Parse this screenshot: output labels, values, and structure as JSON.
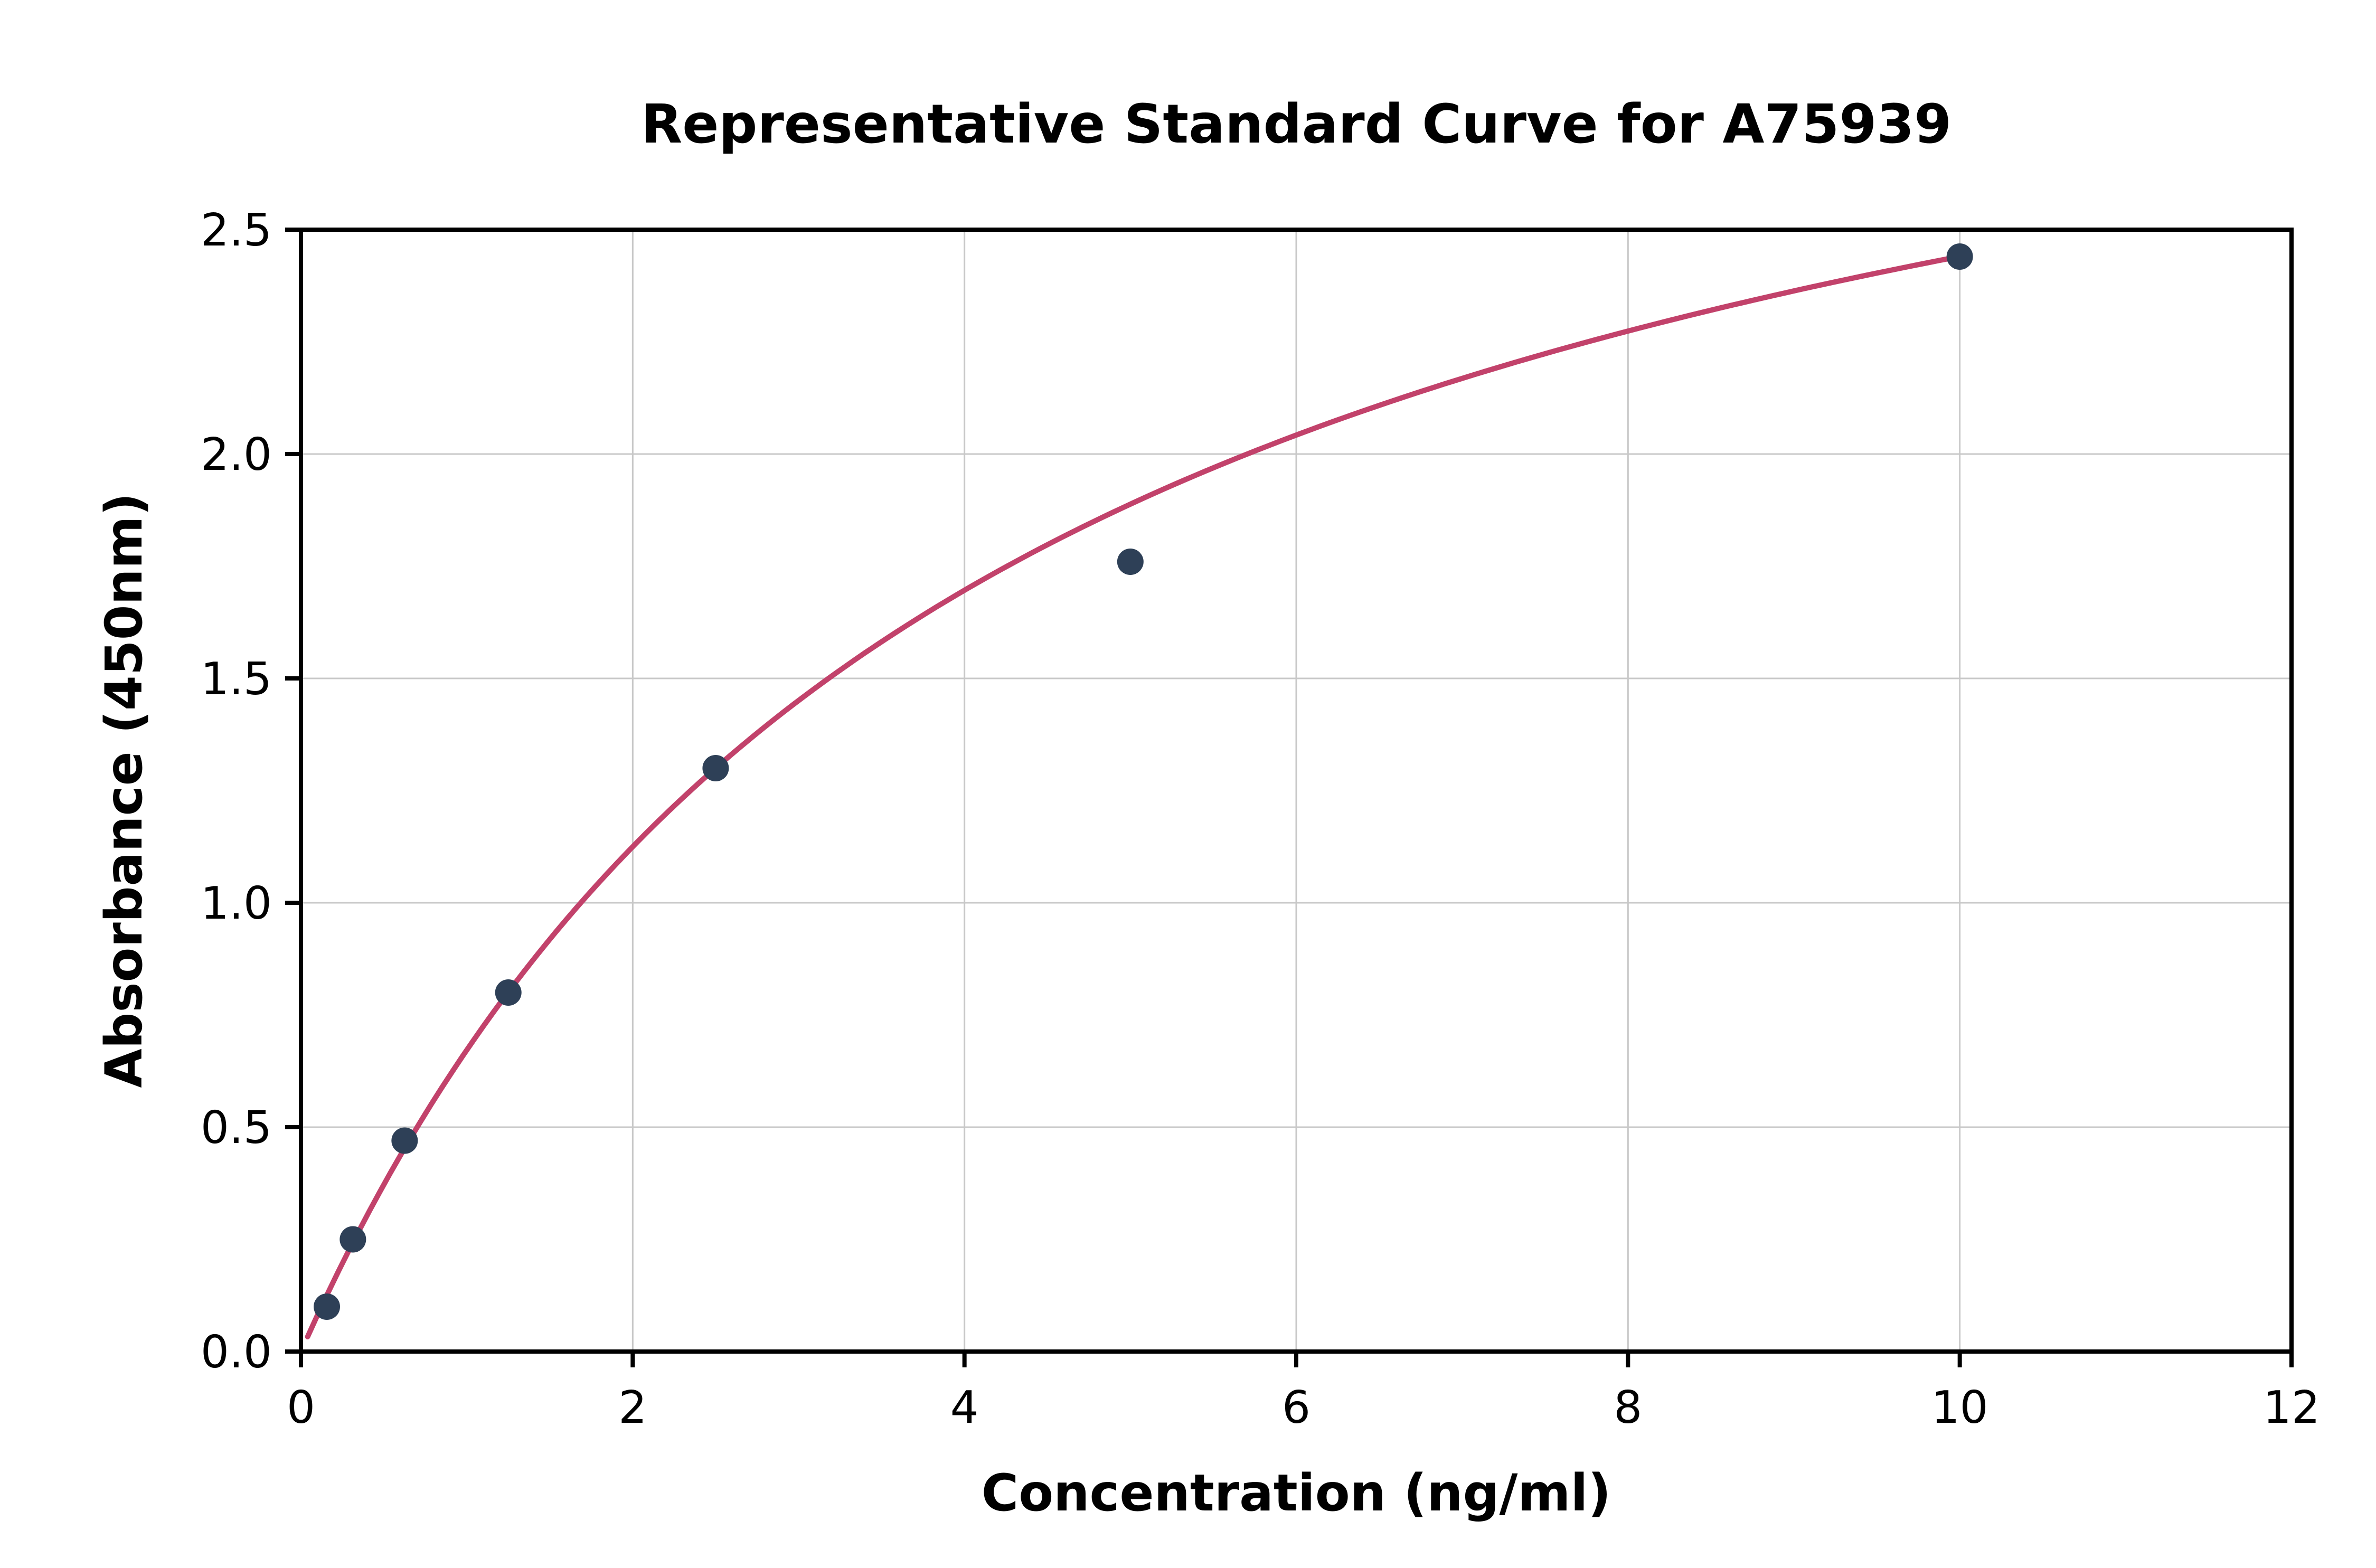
{
  "chart_data": {
    "type": "scatter",
    "title": "Representative Standard Curve for A75939",
    "xlabel": "Concentration (ng/ml)",
    "ylabel": "Absorbance (450nm)",
    "xlim": [
      0,
      12
    ],
    "ylim": [
      0,
      2.5
    ],
    "x_ticks": [
      0,
      2,
      4,
      6,
      8,
      10,
      12
    ],
    "x_tick_labels": [
      "0",
      "2",
      "4",
      "6",
      "8",
      "10",
      "12"
    ],
    "y_ticks": [
      0,
      0.5,
      1.0,
      1.5,
      2.0,
      2.5
    ],
    "y_tick_labels": [
      "0.0",
      "0.5",
      "1.0",
      "1.5",
      "2.0",
      "2.5"
    ],
    "grid": true,
    "legend": "none",
    "points": [
      {
        "x": 0.156,
        "y": 0.1
      },
      {
        "x": 0.313,
        "y": 0.25
      },
      {
        "x": 0.625,
        "y": 0.47
      },
      {
        "x": 1.25,
        "y": 0.8
      },
      {
        "x": 2.5,
        "y": 1.3
      },
      {
        "x": 5.0,
        "y": 1.76
      },
      {
        "x": 10.0,
        "y": 2.44
      }
    ],
    "fit_curve": {
      "model": "y = a*x/(b+x)",
      "a": 3.448,
      "b": 4.13,
      "x_start": 0.04,
      "x_end": 10.0
    },
    "colors": {
      "curve": "#c2426b",
      "marker": "#2e4057",
      "grid": "#c8c8c8",
      "axis": "#000000",
      "background": "#ffffff"
    }
  }
}
